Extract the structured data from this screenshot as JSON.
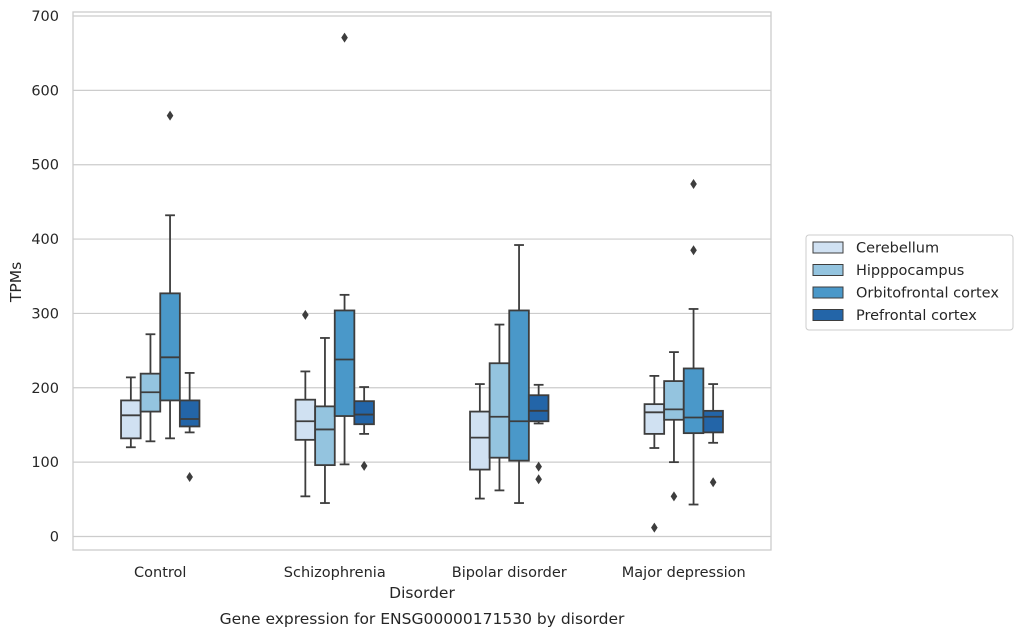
{
  "caption": "Gene expression for ENSG00000171530 by disorder",
  "chart_data": {
    "type": "box",
    "title": "",
    "xlabel": "Disorder",
    "ylabel": "TPMs",
    "ylim": [
      -20,
      705
    ],
    "yticks": [
      0,
      100,
      200,
      300,
      400,
      500,
      600,
      700
    ],
    "grid": "horizontal",
    "legend_position": "right",
    "categories": [
      "Control",
      "Schizophrenia",
      "Bipolar disorder",
      "Major depression"
    ],
    "series": [
      {
        "name": "Cerebellum",
        "color": "#d0e1f2",
        "boxes": [
          {
            "whisker_low": 120,
            "q1": 132,
            "median": 163,
            "q3": 183,
            "whisker_high": 214,
            "outliers": []
          },
          {
            "whisker_low": 54,
            "q1": 130,
            "median": 155,
            "q3": 184,
            "whisker_high": 222,
            "outliers": [
              298
            ]
          },
          {
            "whisker_low": 51,
            "q1": 90,
            "median": 133,
            "q3": 168,
            "whisker_high": 205,
            "outliers": []
          },
          {
            "whisker_low": 119,
            "q1": 138,
            "median": 167,
            "q3": 178,
            "whisker_high": 216,
            "outliers": [
              12
            ]
          }
        ]
      },
      {
        "name": "Hipppocampus",
        "color": "#94c4df",
        "boxes": [
          {
            "whisker_low": 128,
            "q1": 168,
            "median": 194,
            "q3": 219,
            "whisker_high": 272,
            "outliers": []
          },
          {
            "whisker_low": 45,
            "q1": 96,
            "median": 144,
            "q3": 175,
            "whisker_high": 267,
            "outliers": []
          },
          {
            "whisker_low": 62,
            "q1": 106,
            "median": 161,
            "q3": 233,
            "whisker_high": 285,
            "outliers": []
          },
          {
            "whisker_low": 100,
            "q1": 157,
            "median": 171,
            "q3": 209,
            "whisker_high": 248,
            "outliers": [
              54
            ]
          }
        ]
      },
      {
        "name": "Orbitofrontal cortex",
        "color": "#4a98c9",
        "boxes": [
          {
            "whisker_low": 132,
            "q1": 183,
            "median": 241,
            "q3": 327,
            "whisker_high": 432,
            "outliers": [
              566
            ]
          },
          {
            "whisker_low": 97,
            "q1": 162,
            "median": 238,
            "q3": 304,
            "whisker_high": 325,
            "outliers": [
              671
            ]
          },
          {
            "whisker_low": 45,
            "q1": 102,
            "median": 155,
            "q3": 304,
            "whisker_high": 392,
            "outliers": []
          },
          {
            "whisker_low": 43,
            "q1": 139,
            "median": 160,
            "q3": 226,
            "whisker_high": 306,
            "outliers": [
              385,
              474
            ]
          }
        ]
      },
      {
        "name": "Prefrontal cortex",
        "color": "#2365a8",
        "boxes": [
          {
            "whisker_low": 140,
            "q1": 148,
            "median": 158,
            "q3": 183,
            "whisker_high": 220,
            "outliers": [
              80
            ]
          },
          {
            "whisker_low": 138,
            "q1": 151,
            "median": 164,
            "q3": 182,
            "whisker_high": 201,
            "outliers": [
              95
            ]
          },
          {
            "whisker_low": 152,
            "q1": 155,
            "median": 169,
            "q3": 190,
            "whisker_high": 204,
            "outliers": [
              77,
              94
            ]
          },
          {
            "whisker_low": 126,
            "q1": 140,
            "median": 161,
            "q3": 169,
            "whisker_high": 205,
            "outliers": [
              73
            ]
          }
        ]
      }
    ]
  }
}
